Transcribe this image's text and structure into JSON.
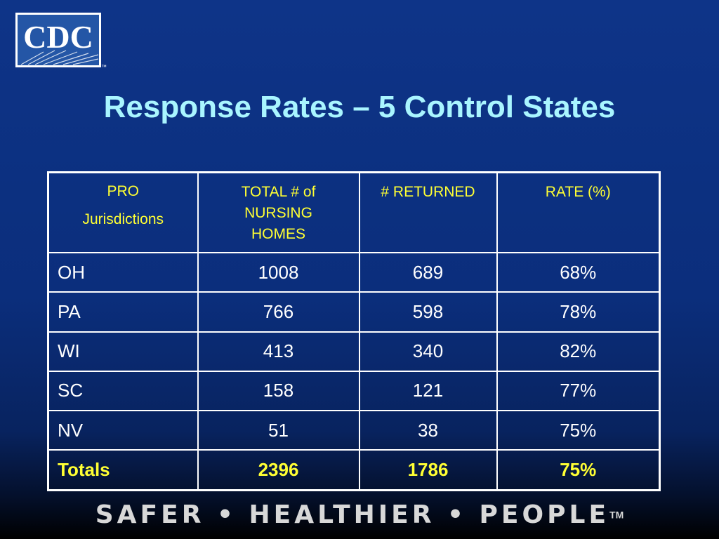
{
  "logo": {
    "text": "CDC",
    "trademark": "™"
  },
  "title": "Response Rates – 5 Control States",
  "table": {
    "headers": {
      "pro_line1": "PRO",
      "pro_line2": "Jurisdictions",
      "total": "TOTAL # of NURSING HOMES",
      "returned": "# RETURNED",
      "rate": "RATE (%)"
    },
    "rows": [
      {
        "state": "OH",
        "total": "1008",
        "returned": "689",
        "rate": "68%"
      },
      {
        "state": "PA",
        "total": "766",
        "returned": "598",
        "rate": "78%"
      },
      {
        "state": "WI",
        "total": "413",
        "returned": "340",
        "rate": "82%"
      },
      {
        "state": "SC",
        "total": "158",
        "returned": "121",
        "rate": "77%"
      },
      {
        "state": "NV",
        "total": "51",
        "returned": "38",
        "rate": "75%"
      }
    ],
    "totals": {
      "label": "Totals",
      "total": "2396",
      "returned": "1786",
      "rate": "75%"
    }
  },
  "footer": {
    "tagline": "SAFER • HEALTHIER • PEOPLE",
    "trademark": "TM"
  },
  "colors": {
    "title": "#a9f5ff",
    "header": "#ffff33",
    "background": "#0e3488"
  }
}
